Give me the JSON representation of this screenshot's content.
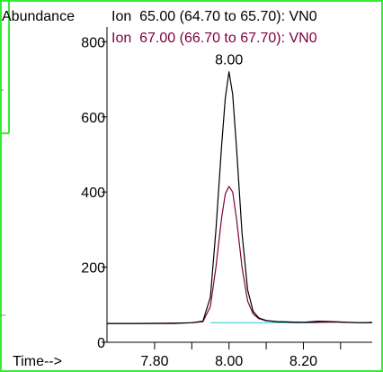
{
  "chart_data": {
    "type": "line",
    "ylabel": "Abundance",
    "xlabel": "Time-->",
    "xlim": [
      7.672,
      8.385
    ],
    "ylim": [
      0,
      820
    ],
    "x_ticks": [
      7.8,
      7.9,
      8.0,
      8.1,
      8.2,
      8.3
    ],
    "x_tick_labels": [
      "7.80",
      "8.00",
      "8.20"
    ],
    "x_tick_label_values": [
      7.8,
      8.0,
      8.2
    ],
    "y_ticks": [
      0,
      200,
      400,
      600,
      800
    ],
    "y_tick_labels": [
      "0",
      "200",
      "400",
      "600",
      "800"
    ],
    "legend_position": "top",
    "annotations": [
      {
        "text": "8.00",
        "x": 8.0,
        "y": 720
      }
    ],
    "series": [
      {
        "name": "Ion  65.00 (64.70 to 65.70): VN0",
        "color": "#000000",
        "x": [
          7.672,
          7.75,
          7.85,
          7.9,
          7.93,
          7.95,
          7.965,
          7.98,
          7.99,
          8.0,
          8.01,
          8.02,
          8.035,
          8.05,
          8.065,
          8.08,
          8.1,
          8.13,
          8.16,
          8.2,
          8.24,
          8.28,
          8.32,
          8.36,
          8.385
        ],
        "y": [
          50,
          50,
          50,
          52,
          56,
          120,
          300,
          520,
          650,
          720,
          660,
          520,
          290,
          140,
          82,
          65,
          58,
          55,
          54,
          53,
          56,
          55,
          53,
          52,
          53
        ]
      },
      {
        "name": "Ion  67.00 (66.70 to 67.70): VN0",
        "color": "#800040",
        "x": [
          7.672,
          7.75,
          7.85,
          7.9,
          7.93,
          7.95,
          7.965,
          7.98,
          7.99,
          8.0,
          8.01,
          8.02,
          8.035,
          8.05,
          8.065,
          8.08,
          8.1,
          8.13,
          8.16,
          8.2,
          8.24,
          8.28,
          8.32,
          8.36,
          8.385
        ],
        "y": [
          50,
          50,
          51,
          52,
          55,
          95,
          200,
          330,
          395,
          415,
          400,
          330,
          200,
          110,
          75,
          63,
          57,
          55,
          54,
          53,
          53,
          54,
          53,
          52,
          52
        ]
      },
      {
        "name": "baseline",
        "color": "#40d0e0",
        "x": [
          7.95,
          8.24
        ],
        "y": [
          52,
          52
        ]
      }
    ]
  }
}
